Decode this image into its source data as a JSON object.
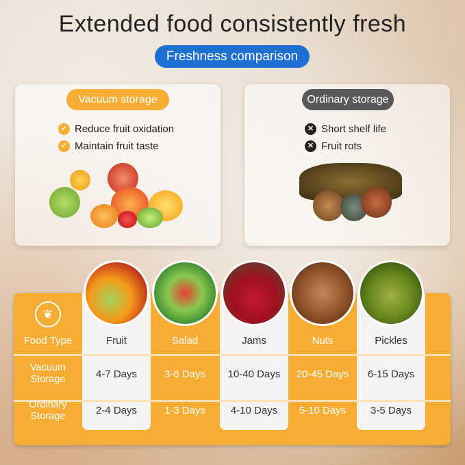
{
  "title": "Extended  food consistently fresh",
  "subtitle": "Freshness comparison",
  "vacuum_card": {
    "label": "Vacuum storage",
    "features": [
      "Reduce fruit oxidation",
      "Maintain fruit taste"
    ],
    "icon": "check-circle-icon",
    "color": "#f7ad33"
  },
  "ordinary_card": {
    "label": "Ordinary storage",
    "features": [
      "Short shelf life",
      "Fruit rots"
    ],
    "icon": "x-circle-icon",
    "color": "#58585a"
  },
  "table": {
    "icon": "leaf-freshness-icon",
    "header_label": "Food Type",
    "rows": [
      {
        "label": "Vacuum Storage"
      },
      {
        "label": "Ordinary Storage"
      }
    ],
    "foods": [
      {
        "name": "Fruit",
        "vacuum": "4-7 Days",
        "ordinary": "2-4 Days"
      },
      {
        "name": "Salad",
        "vacuum": "3-6 Days",
        "ordinary": "1-3 Days"
      },
      {
        "name": "Jams",
        "vacuum": "10-40 Days",
        "ordinary": "4-10 Days"
      },
      {
        "name": "Nuts",
        "vacuum": "20-45 Days",
        "ordinary": "5-10 Days"
      },
      {
        "name": "Pickles",
        "vacuum": "6-15 Days",
        "ordinary": "3-5 Days"
      }
    ]
  }
}
